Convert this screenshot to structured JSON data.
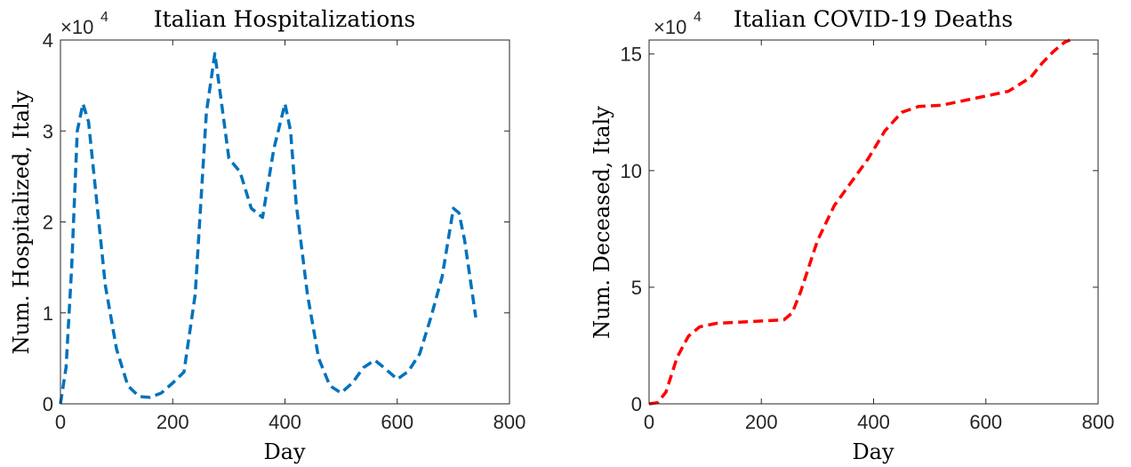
{
  "chart_data": [
    {
      "type": "line",
      "title": "Italian Hospitalizations",
      "xlabel": "Day",
      "ylabel": "Num. Hospitalized, Italy",
      "xlim": [
        0,
        800
      ],
      "ylim": [
        0,
        40000
      ],
      "xticks": [
        "0",
        "200",
        "400",
        "600",
        "800"
      ],
      "yticks": [
        "0",
        "1",
        "2",
        "3",
        "4"
      ],
      "multiplier": {
        "base": "×10",
        "exponent": "4"
      },
      "grid": false,
      "series": [
        {
          "color": "#0072BD",
          "line_style": "dashed",
          "x": [
            0,
            10,
            20,
            30,
            40,
            50,
            60,
            70,
            80,
            100,
            120,
            140,
            160,
            180,
            200,
            220,
            240,
            260,
            275,
            285,
            300,
            320,
            340,
            360,
            380,
            400,
            410,
            420,
            440,
            460,
            480,
            500,
            520,
            540,
            560,
            580,
            600,
            620,
            640,
            660,
            680,
            700,
            710,
            720,
            740
          ],
          "y": [
            0,
            4000,
            15000,
            30000,
            33000,
            31000,
            25000,
            19000,
            13000,
            6000,
            2000,
            800,
            700,
            1200,
            2300,
            3500,
            12000,
            32000,
            38500,
            34000,
            27000,
            25500,
            21500,
            20500,
            28000,
            33000,
            30000,
            22000,
            12000,
            5000,
            2000,
            1200,
            2300,
            4000,
            4800,
            3800,
            2700,
            3600,
            5500,
            9500,
            14000,
            21500,
            21000,
            18000,
            9500
          ]
        }
      ]
    },
    {
      "type": "line",
      "title": "Italian COVID-19 Deaths",
      "xlabel": "Day",
      "ylabel": "Num. Deceased, Italy",
      "xlim": [
        0,
        800
      ],
      "ylim": [
        0,
        156000
      ],
      "xticks": [
        "0",
        "200",
        "400",
        "600",
        "800"
      ],
      "yticks": [
        "0",
        "5",
        "10",
        "15"
      ],
      "multiplier": {
        "base": "×10",
        "exponent": "4"
      },
      "grid": false,
      "series": [
        {
          "color": "#FF0000",
          "line_style": "dashed",
          "x": [
            0,
            15,
            30,
            50,
            70,
            90,
            120,
            160,
            200,
            240,
            255,
            270,
            300,
            330,
            360,
            390,
            420,
            450,
            480,
            520,
            560,
            600,
            640,
            680,
            700,
            720,
            740,
            750
          ],
          "y": [
            0,
            500,
            5000,
            20000,
            29000,
            33000,
            34500,
            35000,
            35500,
            36000,
            39000,
            48000,
            70000,
            85000,
            95000,
            105000,
            117000,
            125000,
            127500,
            128000,
            130000,
            132000,
            134000,
            140000,
            146000,
            151000,
            155000,
            156000
          ]
        }
      ]
    }
  ]
}
